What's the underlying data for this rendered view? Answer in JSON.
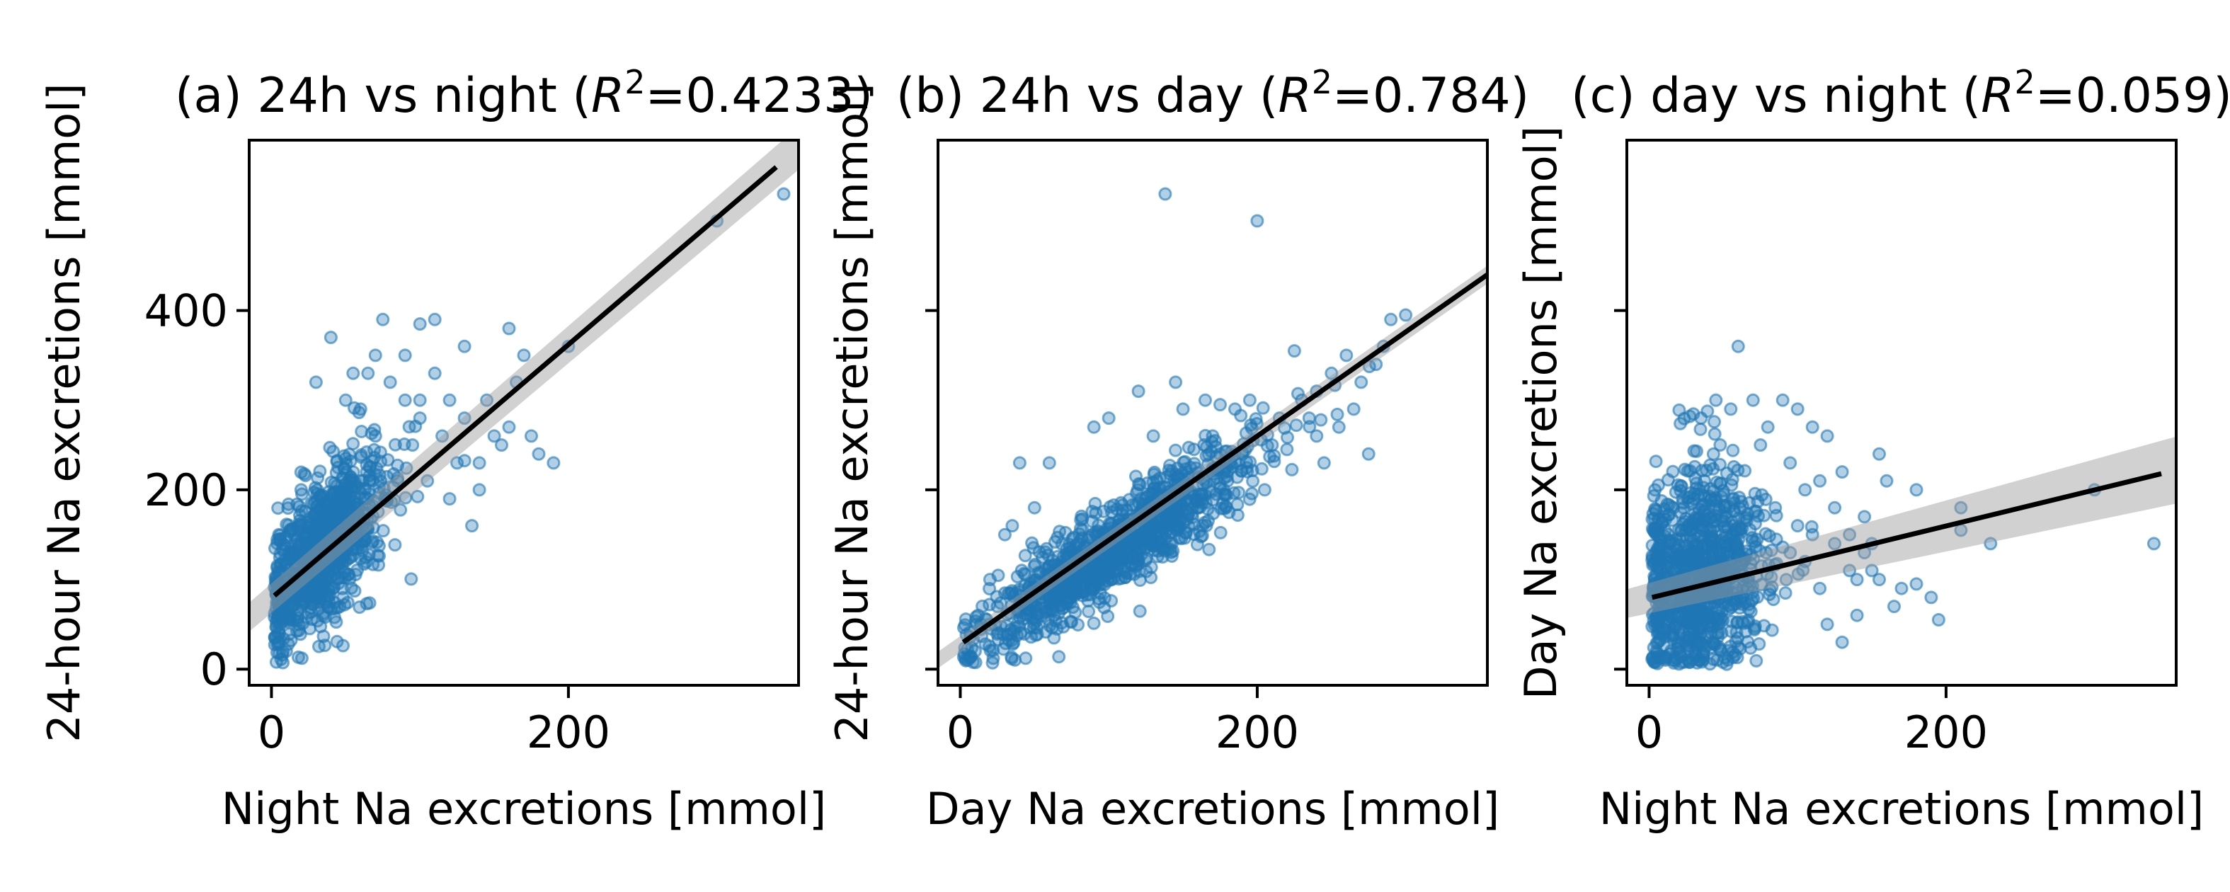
{
  "chart_data": [
    {
      "type": "scatter",
      "panel": "a",
      "title_prefix": "(a) 24h vs night (",
      "title_r2": "0.4233",
      "xlabel": "Night Na excretions [mmol]",
      "ylabel": "24-hour Na excretions [mmol]",
      "xlim": [
        -15,
        355
      ],
      "ylim": [
        -18,
        590
      ],
      "xticks": [
        0,
        200
      ],
      "yticks": [
        0,
        200,
        400
      ],
      "show_ytick_labels": true,
      "grid": false,
      "point_color": "#1f77b4",
      "line_color": "#000000",
      "band_color": "#999999",
      "fit": {
        "x": [
          2,
          340
        ],
        "y": [
          82,
          560
        ]
      },
      "band_halfwidth": [
        14,
        22
      ],
      "cloud": {
        "cx": 35,
        "cy": 135,
        "sx": 20,
        "sy": 48,
        "rho": 0.6,
        "n": 950
      },
      "points": [
        [
          50,
          235
        ],
        [
          60,
          210
        ],
        [
          70,
          260
        ],
        [
          80,
          320
        ],
        [
          90,
          300
        ],
        [
          100,
          280
        ],
        [
          110,
          330
        ],
        [
          120,
          300
        ],
        [
          130,
          280
        ],
        [
          140,
          230
        ],
        [
          150,
          260
        ],
        [
          160,
          380
        ],
        [
          170,
          350
        ],
        [
          180,
          240
        ],
        [
          190,
          230
        ],
        [
          110,
          390
        ],
        [
          130,
          360
        ],
        [
          160,
          270
        ],
        [
          200,
          360
        ],
        [
          300,
          500
        ],
        [
          345,
          530
        ],
        [
          40,
          370
        ],
        [
          75,
          390
        ],
        [
          100,
          300
        ],
        [
          125,
          230
        ],
        [
          135,
          160
        ],
        [
          140,
          200
        ],
        [
          120,
          190
        ],
        [
          95,
          250
        ],
        [
          85,
          210
        ],
        [
          105,
          210
        ],
        [
          115,
          260
        ],
        [
          145,
          300
        ],
        [
          155,
          250
        ],
        [
          165,
          320
        ],
        [
          175,
          260
        ],
        [
          60,
          290
        ],
        [
          50,
          300
        ],
        [
          70,
          350
        ],
        [
          65,
          330
        ],
        [
          55,
          330
        ],
        [
          90,
          350
        ],
        [
          100,
          385
        ],
        [
          30,
          320
        ],
        [
          20,
          200
        ],
        [
          5,
          150
        ],
        [
          5,
          30
        ],
        [
          10,
          20
        ],
        [
          3,
          90
        ],
        [
          8,
          60
        ]
      ]
    },
    {
      "type": "scatter",
      "panel": "b",
      "title_prefix": "(b) 24h vs day (",
      "title_r2": "0.784",
      "xlabel": "Day Na excretions [mmol]",
      "ylabel": "24-hour Na excretions [mmol]",
      "xlim": [
        -15,
        355
      ],
      "ylim": [
        -18,
        590
      ],
      "xticks": [
        0,
        200
      ],
      "yticks": [
        0,
        200,
        400
      ],
      "show_ytick_labels": false,
      "grid": false,
      "point_color": "#1f77b4",
      "line_color": "#000000",
      "band_color": "#999999",
      "fit": {
        "x": [
          2,
          355
        ],
        "y": [
          30,
          440
        ]
      },
      "band_halfwidth": [
        8,
        9
      ],
      "cloud": {
        "cx": 105,
        "cy": 135,
        "sx": 45,
        "sy": 55,
        "rho": 0.9,
        "n": 1100
      },
      "points": [
        [
          138,
          530
        ],
        [
          200,
          500
        ],
        [
          290,
          390
        ],
        [
          300,
          395
        ],
        [
          280,
          340
        ],
        [
          270,
          320
        ],
        [
          250,
          330
        ],
        [
          240,
          310
        ],
        [
          260,
          350
        ],
        [
          225,
          355
        ],
        [
          215,
          280
        ],
        [
          230,
          300
        ],
        [
          240,
          260
        ],
        [
          255,
          270
        ],
        [
          265,
          290
        ],
        [
          275,
          240
        ],
        [
          210,
          250
        ],
        [
          195,
          300
        ],
        [
          185,
          290
        ],
        [
          175,
          295
        ],
        [
          170,
          260
        ],
        [
          205,
          200
        ],
        [
          220,
          245
        ],
        [
          190,
          240
        ],
        [
          145,
          320
        ],
        [
          150,
          290
        ],
        [
          165,
          300
        ],
        [
          120,
          310
        ],
        [
          100,
          280
        ],
        [
          90,
          270
        ],
        [
          60,
          230
        ],
        [
          50,
          180
        ],
        [
          30,
          150
        ],
        [
          40,
          230
        ],
        [
          35,
          160
        ],
        [
          20,
          100
        ],
        [
          10,
          20
        ],
        [
          5,
          10
        ],
        [
          12,
          60
        ],
        [
          25,
          70
        ],
        [
          45,
          60
        ],
        [
          70,
          90
        ],
        [
          90,
          110
        ],
        [
          130,
          260
        ],
        [
          155,
          225
        ],
        [
          180,
          210
        ],
        [
          160,
          180
        ],
        [
          245,
          230
        ],
        [
          285,
          360
        ],
        [
          235,
          280
        ]
      ]
    },
    {
      "type": "scatter",
      "panel": "c",
      "title_prefix": "(c) day vs night (",
      "title_r2": "0.059",
      "xlabel": "Night Na excretions [mmol]",
      "ylabel": "Day Na excretions [mmol]",
      "xlim": [
        -15,
        355
      ],
      "ylim": [
        -18,
        590
      ],
      "xticks": [
        0,
        200
      ],
      "yticks": [
        0,
        200,
        400
      ],
      "show_ytick_labels": false,
      "grid": false,
      "point_color": "#1f77b4",
      "line_color": "#000000",
      "band_color": "#999999",
      "fit": {
        "x": [
          2,
          345
        ],
        "y": [
          80,
          218
        ]
      },
      "band_halfwidth": [
        14,
        34
      ],
      "cloud": {
        "cx": 32,
        "cy": 105,
        "sx": 22,
        "sy": 55,
        "rho": 0.15,
        "n": 1000
      },
      "points": [
        [
          60,
          360
        ],
        [
          70,
          300
        ],
        [
          90,
          300
        ],
        [
          100,
          290
        ],
        [
          110,
          270
        ],
        [
          120,
          260
        ],
        [
          80,
          270
        ],
        [
          55,
          290
        ],
        [
          45,
          300
        ],
        [
          35,
          280
        ],
        [
          75,
          250
        ],
        [
          95,
          230
        ],
        [
          105,
          200
        ],
        [
          115,
          210
        ],
        [
          125,
          180
        ],
        [
          135,
          150
        ],
        [
          145,
          170
        ],
        [
          155,
          240
        ],
        [
          160,
          210
        ],
        [
          130,
          220
        ],
        [
          140,
          100
        ],
        [
          150,
          110
        ],
        [
          165,
          70
        ],
        [
          170,
          90
        ],
        [
          180,
          95
        ],
        [
          190,
          80
        ],
        [
          195,
          55
        ],
        [
          210,
          155
        ],
        [
          120,
          50
        ],
        [
          130,
          30
        ],
        [
          140,
          60
        ],
        [
          100,
          160
        ],
        [
          110,
          150
        ],
        [
          150,
          140
        ],
        [
          180,
          200
        ],
        [
          210,
          180
        ],
        [
          230,
          140
        ],
        [
          300,
          200
        ],
        [
          340,
          140
        ],
        [
          85,
          180
        ],
        [
          95,
          130
        ],
        [
          105,
          120
        ],
        [
          115,
          90
        ],
        [
          125,
          140
        ],
        [
          135,
          110
        ],
        [
          145,
          130
        ],
        [
          155,
          100
        ],
        [
          5,
          20
        ],
        [
          10,
          40
        ],
        [
          3,
          10
        ]
      ]
    }
  ]
}
